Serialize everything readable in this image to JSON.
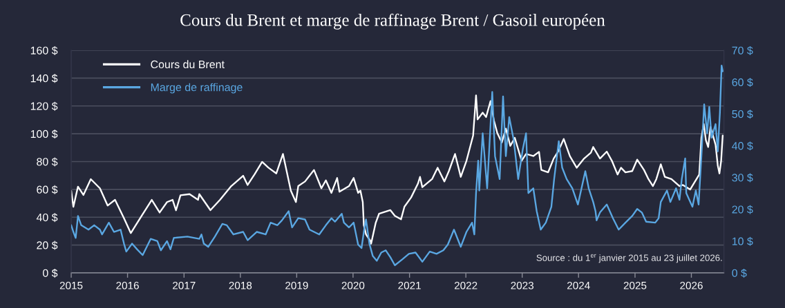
{
  "chart_data": {
    "type": "line",
    "title": "Cours du Brent et marge de raffinage Brent / Gasoil européen",
    "annotations": [
      "Source : du 1$^{er}$ janvier 2015 au 23 juillet 2026."
    ],
    "xlim": [
      "2015-01-01",
      "2026-07-31"
    ],
    "xticks": [
      {
        "value": "2015-01-01",
        "label": "2015"
      },
      {
        "value": "2016-01-01",
        "label": "2016"
      },
      {
        "value": "2017-01-01",
        "label": "2017"
      },
      {
        "value": "2018-01-01",
        "label": "2018"
      },
      {
        "value": "2019-01-01",
        "label": "2019"
      },
      {
        "value": "2020-01-01",
        "label": "2020"
      },
      {
        "value": "2021-01-01",
        "label": "2021"
      },
      {
        "value": "2022-01-01",
        "label": "2022"
      },
      {
        "value": "2023-01-01",
        "label": "2023"
      },
      {
        "value": "2024-01-01",
        "label": "2024"
      },
      {
        "value": "2025-01-01",
        "label": "2025"
      },
      {
        "value": "2026-01-01",
        "label": "2026"
      }
    ],
    "ylim": [
      0,
      160
    ],
    "yticks": [
      {
        "value": 0,
        "label": "0 $"
      },
      {
        "value": 20,
        "label": "20 $"
      },
      {
        "value": 40,
        "label": "40 $"
      },
      {
        "value": 60,
        "label": "60 $"
      },
      {
        "value": 80,
        "label": "80 $"
      },
      {
        "value": 100,
        "label": "100 $"
      },
      {
        "value": 120,
        "label": "120 $"
      },
      {
        "value": 140,
        "label": "140 $"
      },
      {
        "value": 160,
        "label": "160 $"
      }
    ],
    "y2lim": [
      0,
      70
    ],
    "y2ticks": [
      {
        "value": 0,
        "label": "0 $"
      },
      {
        "value": 10,
        "label": "10 $"
      },
      {
        "value": 20,
        "label": "20 $"
      },
      {
        "value": 30,
        "label": "30 $"
      },
      {
        "value": 40,
        "label": "40 $"
      },
      {
        "value": 50,
        "label": "50 $"
      },
      {
        "value": 60,
        "label": "60 $"
      },
      {
        "value": 70,
        "label": "70 $"
      }
    ],
    "grid": "y",
    "legend": "top left",
    "series": [
      {
        "name": "Cours du Brent",
        "color": "#ffffff",
        "x": [
          "2015-01-01",
          "2015-01-15",
          "2015-02-14",
          "2015-03-21",
          "2015-05-08",
          "2015-07-06",
          "2015-08-25",
          "2015-10-12",
          "2015-12-09",
          "2016-01-22",
          "2016-02-14",
          "2016-04-01",
          "2016-06-06",
          "2016-07-27",
          "2016-09-13",
          "2016-10-19",
          "2016-11-10",
          "2016-12-09",
          "2017-02-06",
          "2017-04-02",
          "2017-04-10",
          "2017-06-21",
          "2017-08-22",
          "2017-11-03",
          "2018-01-19",
          "2018-02-17",
          "2018-04-02",
          "2018-05-22",
          "2018-07-02",
          "2018-08-22",
          "2018-10-04",
          "2018-11-24",
          "2018-12-27",
          "2019-01-11",
          "2019-02-24",
          "2019-04-23",
          "2019-06-10",
          "2019-07-09",
          "2019-08-14",
          "2019-09-20",
          "2019-10-05",
          "2019-12-06",
          "2020-01-05",
          "2020-02-03",
          "2020-02-18",
          "2020-03-04",
          "2020-03-11",
          "2020-03-25",
          "2020-04-23",
          "2020-04-27",
          "2020-05-27",
          "2020-06-18",
          "2020-08-30",
          "2020-09-28",
          "2020-11-07",
          "2020-11-29",
          "2021-01-11",
          "2021-02-24",
          "2021-03-10",
          "2021-03-25",
          "2021-05-27",
          "2021-07-02",
          "2021-08-15",
          "2021-09-13",
          "2021-10-23",
          "2021-11-29",
          "2022-01-05",
          "2022-02-17",
          "2022-03-08",
          "2022-03-18",
          "2022-04-20",
          "2022-05-12",
          "2022-06-10",
          "2022-07-02",
          "2022-07-24",
          "2022-08-22",
          "2022-09-17",
          "2022-10-16",
          "2022-11-14",
          "2022-12-28",
          "2023-01-26",
          "2023-03-14",
          "2023-04-20",
          "2023-05-05",
          "2023-06-18",
          "2023-07-24",
          "2023-08-22",
          "2023-09-27",
          "2023-11-06",
          "2023-12-20",
          "2024-02-06",
          "2024-03-21",
          "2024-04-05",
          "2024-05-19",
          "2024-07-02",
          "2024-08-04",
          "2024-09-10",
          "2024-10-02",
          "2024-10-31",
          "2024-12-14",
          "2025-01-15",
          "2025-02-28",
          "2025-03-29",
          "2025-04-27",
          "2025-05-19",
          "2025-06-17",
          "2025-07-13",
          "2025-08-25",
          "2025-10-16",
          "2025-11-07",
          "2025-12-24",
          "2026-02-21",
          "2026-03-07",
          "2026-03-22",
          "2026-04-05",
          "2026-04-20",
          "2026-05-05",
          "2026-06-07",
          "2026-06-21",
          "2026-07-02",
          "2026-07-13",
          "2026-07-23"
        ],
        "values": [
          59,
          47.5,
          62,
          56,
          67.4,
          60.8,
          48.4,
          52.5,
          39.3,
          28.6,
          32.7,
          41,
          52.5,
          43.4,
          50.9,
          52.5,
          45,
          55.8,
          56.6,
          52.5,
          56.6,
          45.1,
          52.5,
          62.4,
          69.8,
          63.2,
          70.7,
          79.8,
          75.6,
          71.5,
          85.5,
          59.1,
          50.9,
          62.4,
          65.7,
          74,
          60.8,
          66.5,
          57.5,
          68.2,
          58.3,
          62.4,
          68.2,
          57.5,
          59.1,
          50.9,
          34.3,
          27.7,
          22.8,
          21,
          36,
          42.6,
          45.1,
          41,
          38.5,
          47.6,
          54.2,
          64,
          69,
          61.6,
          67.4,
          75.6,
          65.7,
          73.2,
          85.5,
          69,
          80.6,
          98.7,
          127.6,
          110.3,
          115.2,
          112,
          123.5,
          109.5,
          100.4,
          93.8,
          103.7,
          91.3,
          97.1,
          80.6,
          85.5,
          84,
          87,
          74,
          72.3,
          82.2,
          87.2,
          96.3,
          83.9,
          75.6,
          82.2,
          86.4,
          90.5,
          82.2,
          87.2,
          80.6,
          70.7,
          75.6,
          72.3,
          73.2,
          81.4,
          74,
          67.4,
          62.4,
          67.4,
          78.1,
          69,
          67.4,
          62.4,
          63.2,
          59.9,
          70.7,
          97.1,
          107,
          95.4,
          90.5,
          105,
          92,
          77.3,
          71.5,
          80.6,
          98.7
        ]
      },
      {
        "name": "Marge de raffinage",
        "color": "#5aa7e2",
        "axis": "y2",
        "x": [
          "2015-01-01",
          "2015-01-15",
          "2015-01-30",
          "2015-02-14",
          "2015-03-07",
          "2015-04-23",
          "2015-05-30",
          "2015-07-06",
          "2015-07-20",
          "2015-09-02",
          "2015-10-05",
          "2015-11-17",
          "2015-12-09",
          "2015-12-24",
          "2016-01-30",
          "2016-03-03",
          "2016-04-08",
          "2016-05-30",
          "2016-07-12",
          "2016-08-04",
          "2016-09-13",
          "2016-10-05",
          "2016-10-27",
          "2017-01-23",
          "2017-04-10",
          "2017-04-24",
          "2017-05-09",
          "2017-06-07",
          "2017-07-20",
          "2017-09-06",
          "2017-10-05",
          "2017-11-17",
          "2018-01-19",
          "2018-02-17",
          "2018-04-17",
          "2018-06-14",
          "2018-07-16",
          "2018-08-29",
          "2018-09-27",
          "2018-11-10",
          "2018-12-02",
          "2019-01-11",
          "2019-02-24",
          "2019-03-25",
          "2019-05-27",
          "2019-07-09",
          "2019-08-14",
          "2019-09-06",
          "2019-10-20",
          "2019-11-03",
          "2019-12-06",
          "2020-01-05",
          "2020-02-03",
          "2020-02-25",
          "2020-03-11",
          "2020-03-25",
          "2020-04-16",
          "2020-05-08",
          "2020-06-03",
          "2020-07-02",
          "2020-07-31",
          "2020-08-30",
          "2020-09-28",
          "2020-11-14",
          "2020-12-28",
          "2021-02-09",
          "2021-03-25",
          "2021-05-12",
          "2021-06-25",
          "2021-08-08",
          "2021-09-06",
          "2021-10-16",
          "2021-11-29",
          "2022-01-05",
          "2022-02-10",
          "2022-02-25",
          "2022-03-08",
          "2022-03-22",
          "2022-03-29",
          "2022-04-20",
          "2022-05-19",
          "2022-06-03",
          "2022-06-21",
          "2022-07-09",
          "2022-08-08",
          "2022-08-30",
          "2022-09-17",
          "2022-10-09",
          "2022-11-07",
          "2022-12-06",
          "2023-01-05",
          "2023-01-26",
          "2023-02-10",
          "2023-03-14",
          "2023-04-05",
          "2023-05-01",
          "2023-06-03",
          "2023-07-09",
          "2023-07-27",
          "2023-08-26",
          "2023-09-17",
          "2023-10-16",
          "2023-11-22",
          "2023-12-28",
          "2024-02-14",
          "2024-03-07",
          "2024-04-05",
          "2024-04-20",
          "2024-04-27",
          "2024-05-19",
          "2024-07-02",
          "2024-08-11",
          "2024-09-17",
          "2024-10-31",
          "2024-12-14",
          "2025-01-15",
          "2025-02-14",
          "2025-03-14",
          "2025-05-12",
          "2025-06-03",
          "2025-06-17",
          "2025-07-27",
          "2025-08-18",
          "2025-09-24",
          "2025-10-16",
          "2025-10-31",
          "2025-11-22",
          "2025-11-29",
          "2026-01-08",
          "2026-01-30",
          "2026-02-17",
          "2026-03-07",
          "2026-03-25",
          "2026-04-13",
          "2026-04-27",
          "2026-05-12",
          "2026-06-07",
          "2026-06-21",
          "2026-07-05",
          "2026-07-16",
          "2026-07-23"
        ],
        "values": [
          15,
          12.9,
          11,
          17.9,
          15,
          13.6,
          15,
          13.6,
          12.1,
          15.8,
          12.9,
          13.6,
          9.2,
          6.7,
          9.2,
          7.4,
          5.6,
          10.7,
          10,
          7.1,
          10,
          7.4,
          11,
          11.4,
          10.7,
          12.1,
          9.2,
          8.2,
          11.4,
          15.4,
          15,
          12.1,
          12.9,
          10.3,
          12.9,
          12.1,
          15.8,
          15,
          16.5,
          19.4,
          14.3,
          17.2,
          16.8,
          13.6,
          12.1,
          15,
          17.2,
          16.1,
          18.6,
          15.8,
          14.3,
          15.8,
          8.9,
          7.8,
          12.9,
          16.8,
          9.2,
          5.3,
          3.8,
          6.4,
          7.1,
          4.9,
          2.4,
          4.2,
          6,
          6.4,
          3.5,
          6.7,
          6,
          7.1,
          8.9,
          13.6,
          8.2,
          12.9,
          15.8,
          12.1,
          25.1,
          35.3,
          25.9,
          43.9,
          26.6,
          40.3,
          56.9,
          36.7,
          29.5,
          55.5,
          36.7,
          49,
          41.8,
          29.5,
          38.9,
          43.9,
          25.1,
          26.6,
          19.4,
          13.6,
          15.8,
          20.8,
          29.5,
          41.4,
          33.1,
          29.5,
          26.6,
          21.5,
          32,
          26.6,
          22.3,
          19.4,
          16.5,
          19,
          21.5,
          17.2,
          13.6,
          15.8,
          17.9,
          20.1,
          19,
          16.1,
          15.8,
          17.2,
          22.3,
          25.9,
          22.3,
          26.6,
          23,
          29.5,
          36,
          25.1,
          20.8,
          25.9,
          21.5,
          36.7,
          53,
          43.9,
          52.2,
          42.5,
          46.8,
          38.2,
          50.4,
          65.2,
          63.4
        ]
      }
    ]
  }
}
